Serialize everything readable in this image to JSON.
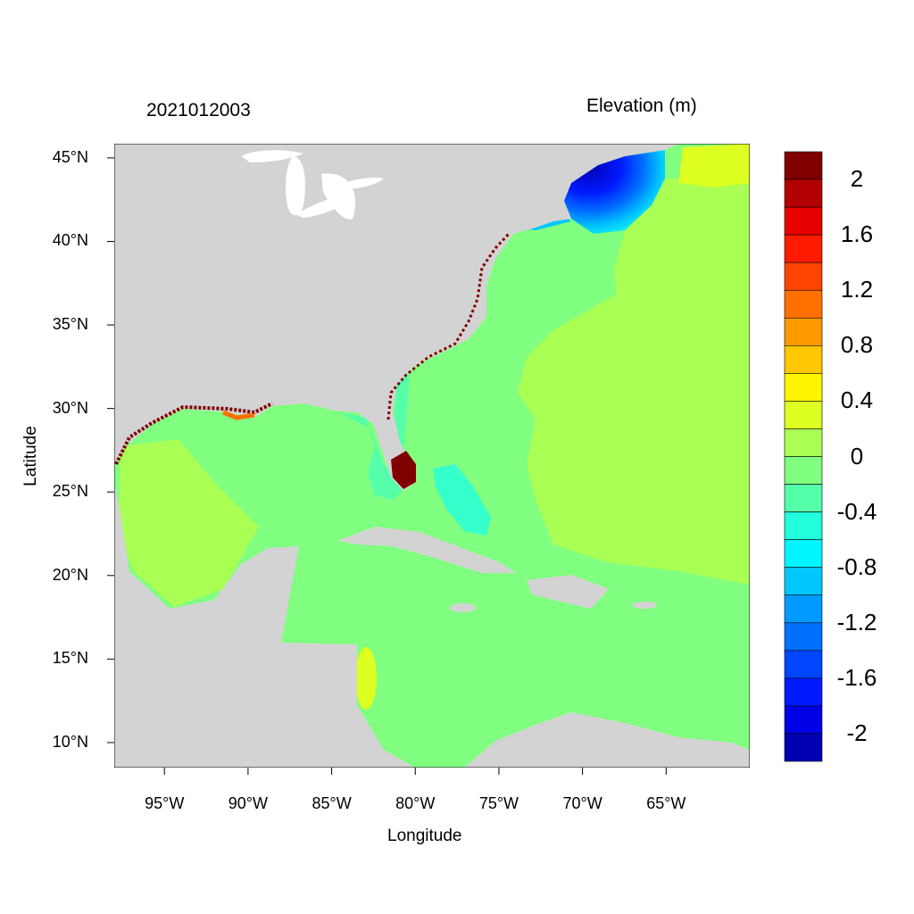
{
  "title_left": "2021012003",
  "title_right": "Elevation (m)",
  "map": {
    "xlabel": "Longitude",
    "ylabel": "Latitude",
    "lon_range": [
      -98,
      -60
    ],
    "lat_range": [
      8.5,
      45.85
    ],
    "x_ticks": [
      {
        "lon": -95,
        "label": "95°W"
      },
      {
        "lon": -90,
        "label": "90°W"
      },
      {
        "lon": -85,
        "label": "85°W"
      },
      {
        "lon": -80,
        "label": "80°W"
      },
      {
        "lon": -75,
        "label": "75°W"
      },
      {
        "lon": -70,
        "label": "70°W"
      },
      {
        "lon": -65,
        "label": "65°W"
      }
    ],
    "y_ticks": [
      {
        "lat": 45,
        "label": "45°N"
      },
      {
        "lat": 40,
        "label": "40°N"
      },
      {
        "lat": 35,
        "label": "35°N"
      },
      {
        "lat": 30,
        "label": "30°N"
      },
      {
        "lat": 25,
        "label": "25°N"
      },
      {
        "lat": 20,
        "label": "20°N"
      },
      {
        "lat": 15,
        "label": "15°N"
      },
      {
        "lat": 10,
        "label": "10°N"
      }
    ],
    "land_color": "#D3D3D3",
    "water_color": "#FFFFFF"
  },
  "colorbar": {
    "colors": [
      "#800000",
      "#B30000",
      "#E60000",
      "#FF1A00",
      "#FF4500",
      "#FF7000",
      "#FF9A00",
      "#FFC800",
      "#FFF500",
      "#DDFF22",
      "#AAFF55",
      "#80FF80",
      "#55FFAA",
      "#22FFDD",
      "#00F5FF",
      "#00C8FF",
      "#009AFF",
      "#0070FF",
      "#0045FF",
      "#001AFF",
      "#0000E6",
      "#0000B3"
    ],
    "labels": [
      "2",
      "1.6",
      "1.2",
      "0.8",
      "0.4",
      "0",
      "-0.4",
      "-0.8",
      "-1.2",
      "-1.6",
      "-2"
    ],
    "range": [
      -2.2,
      2.2
    ],
    "step": 0.2
  }
}
